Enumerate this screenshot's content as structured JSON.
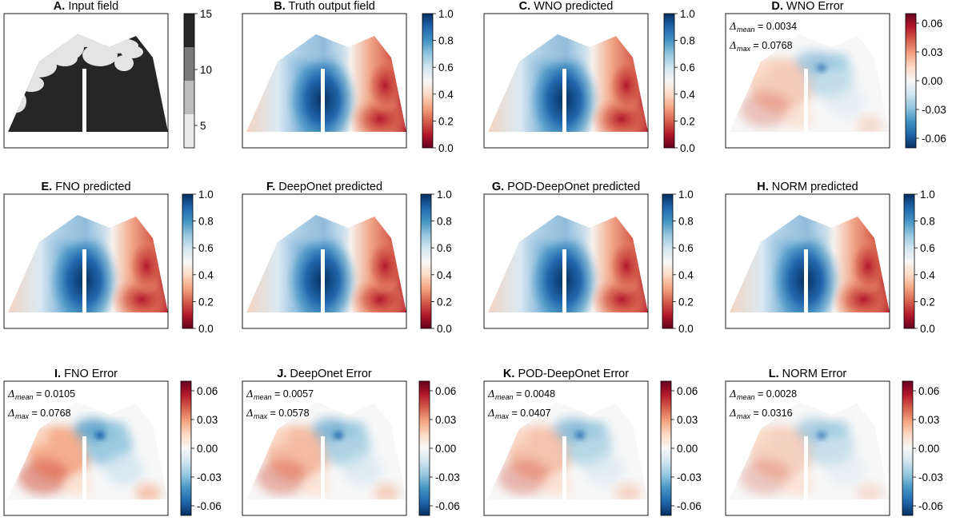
{
  "colors": {
    "cmap_rdbu": [
      "#67001f",
      "#b2182b",
      "#d6604d",
      "#f4a582",
      "#fddbc7",
      "#f7f7f7",
      "#d1e5f0",
      "#92c5de",
      "#4393c3",
      "#2166ac",
      "#053061"
    ],
    "input_levels": [
      "#ebebeb",
      "#bdbdbd",
      "#7a7a7a",
      "#262626"
    ],
    "domain_dark": "#262626",
    "domain_light": "#e4e4e4"
  },
  "chart_data": [
    {
      "type": "heatmap",
      "letter": "A.",
      "title": "Input field",
      "kind": "input",
      "colorbar": {
        "ticks": [
          "5",
          "10",
          "15"
        ],
        "range": [
          3,
          15
        ]
      }
    },
    {
      "type": "heatmap",
      "letter": "B.",
      "title": "Truth output field",
      "kind": "field",
      "colorbar": {
        "ticks": [
          "0.0",
          "0.2",
          "0.4",
          "0.6",
          "0.8",
          "1.0"
        ],
        "range": [
          0.0,
          1.0
        ]
      }
    },
    {
      "type": "heatmap",
      "letter": "C.",
      "title": "WNO predicted",
      "kind": "field",
      "colorbar": {
        "ticks": [
          "0.0",
          "0.2",
          "0.4",
          "0.6",
          "0.8",
          "1.0"
        ],
        "range": [
          0.0,
          1.0
        ]
      }
    },
    {
      "type": "heatmap",
      "letter": "D.",
      "title": "WNO Error",
      "kind": "error",
      "delta_mean": "0.0034",
      "delta_max": "0.0768",
      "colorbar": {
        "ticks": [
          "-0.06",
          "-0.03",
          "0.00",
          "0.03",
          "0.06"
        ],
        "range": [
          -0.07,
          0.07
        ]
      }
    },
    {
      "type": "heatmap",
      "letter": "E.",
      "title": "FNO predicted",
      "kind": "field",
      "colorbar": {
        "ticks": [
          "0.0",
          "0.2",
          "0.4",
          "0.6",
          "0.8",
          "1.0"
        ],
        "range": [
          0.0,
          1.0
        ]
      }
    },
    {
      "type": "heatmap",
      "letter": "F.",
      "title": "DeepOnet predicted",
      "kind": "field",
      "colorbar": {
        "ticks": [
          "0.0",
          "0.2",
          "0.4",
          "0.6",
          "0.8",
          "1.0"
        ],
        "range": [
          0.0,
          1.0
        ]
      }
    },
    {
      "type": "heatmap",
      "letter": "G.",
      "title": "POD-DeepOnet predicted",
      "kind": "field",
      "colorbar": {
        "ticks": [
          "0.0",
          "0.2",
          "0.4",
          "0.6",
          "0.8",
          "1.0"
        ],
        "range": [
          0.0,
          1.0
        ]
      }
    },
    {
      "type": "heatmap",
      "letter": "H.",
      "title": "NORM predicted",
      "kind": "field",
      "colorbar": {
        "ticks": [
          "0.0",
          "0.2",
          "0.4",
          "0.6",
          "0.8",
          "1.0"
        ],
        "range": [
          0.0,
          1.0
        ]
      }
    },
    {
      "type": "heatmap",
      "letter": "I.",
      "title": "FNO Error",
      "kind": "error",
      "delta_mean": "0.0105",
      "delta_max": "0.0768",
      "colorbar": {
        "ticks": [
          "-0.06",
          "-0.03",
          "0.00",
          "0.03",
          "0.06"
        ],
        "range": [
          -0.07,
          0.07
        ]
      }
    },
    {
      "type": "heatmap",
      "letter": "J.",
      "title": "DeepOnet Error",
      "kind": "error",
      "delta_mean": "0.0057",
      "delta_max": "0.0578",
      "colorbar": {
        "ticks": [
          "-0.06",
          "-0.03",
          "0.00",
          "0.03",
          "0.06"
        ],
        "range": [
          -0.07,
          0.07
        ]
      }
    },
    {
      "type": "heatmap",
      "letter": "K.",
      "title": "POD-DeepOnet Error",
      "kind": "error",
      "delta_mean": "0.0048",
      "delta_max": "0.0407",
      "colorbar": {
        "ticks": [
          "-0.06",
          "-0.03",
          "0.00",
          "0.03",
          "0.06"
        ],
        "range": [
          -0.07,
          0.07
        ]
      }
    },
    {
      "type": "heatmap",
      "letter": "L.",
      "title": "NORM Error",
      "kind": "error",
      "delta_mean": "0.0028",
      "delta_max": "0.0316",
      "colorbar": {
        "ticks": [
          "-0.06",
          "-0.03",
          "0.00",
          "0.03",
          "0.06"
        ],
        "range": [
          -0.07,
          0.07
        ]
      }
    }
  ]
}
